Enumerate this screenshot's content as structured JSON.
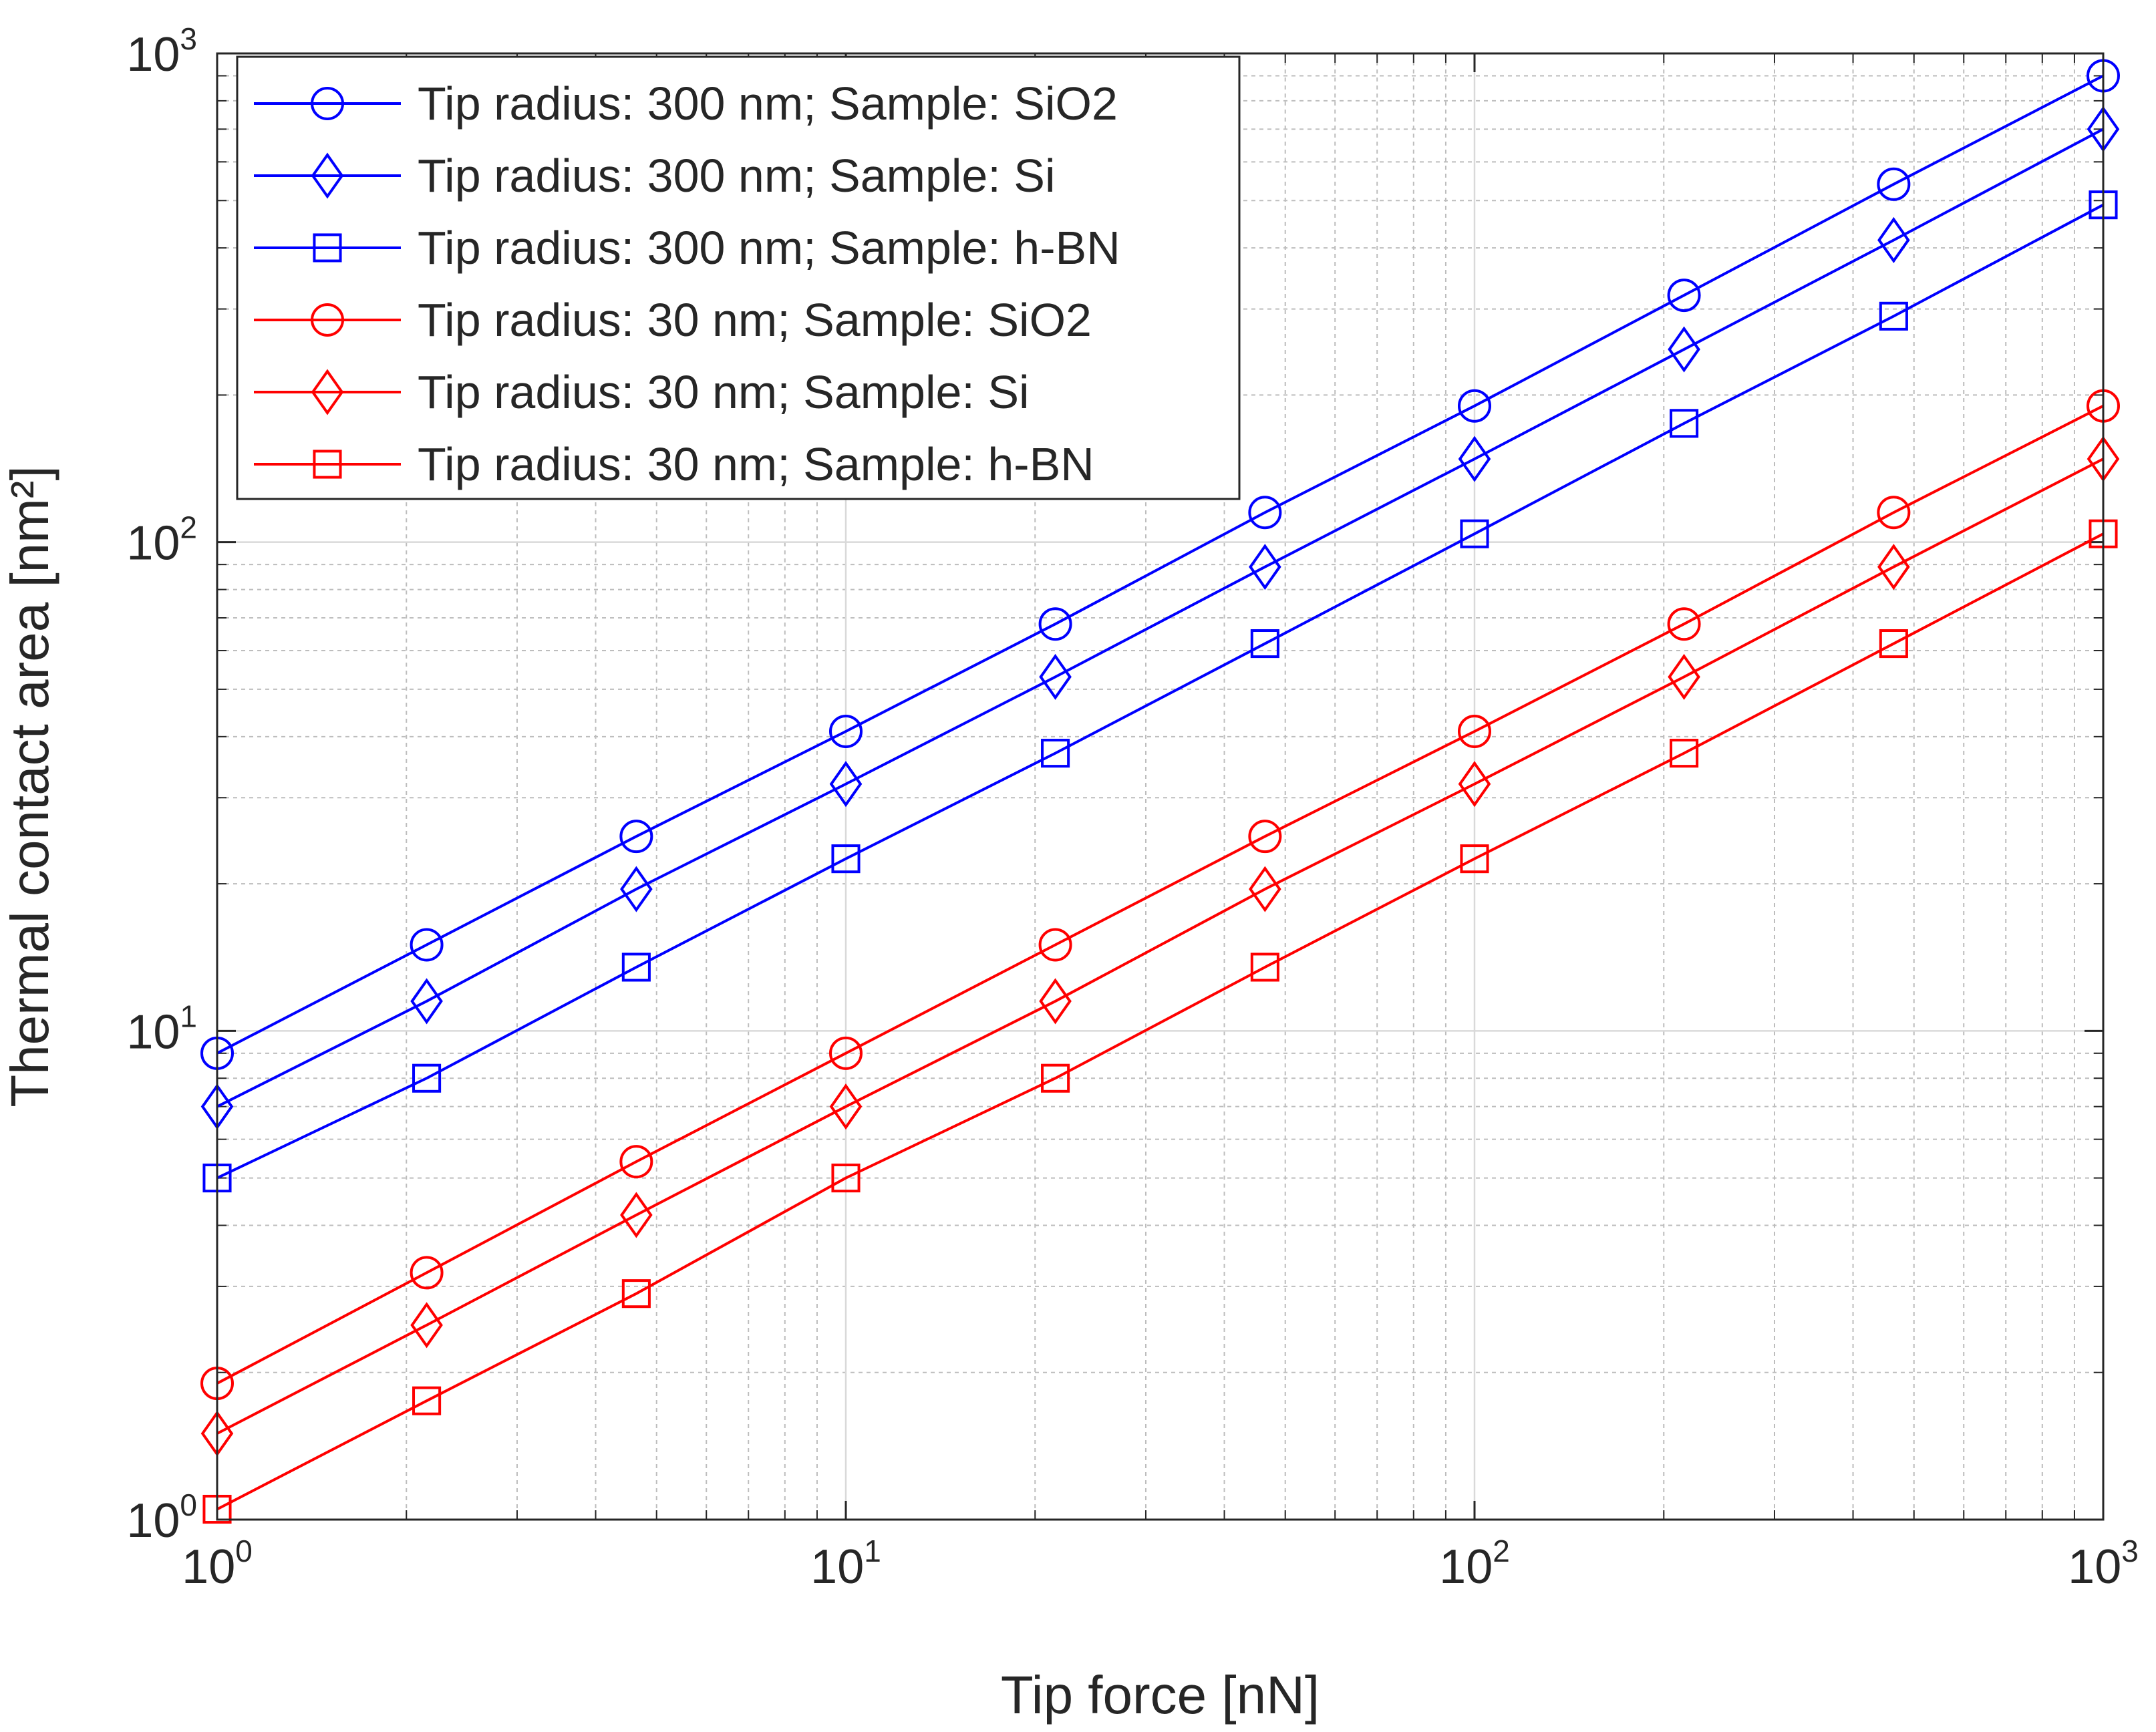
{
  "chart_data": {
    "type": "line",
    "xscale": "log",
    "yscale": "log",
    "xlabel": "Tip force [nN]",
    "ylabel": "Thermal contact area [nm²]",
    "xlim": [
      1,
      1000
    ],
    "ylim": [
      1,
      1000
    ],
    "x_ticks": [
      {
        "base": "10",
        "exp": "0",
        "value": 1
      },
      {
        "base": "10",
        "exp": "1",
        "value": 10
      },
      {
        "base": "10",
        "exp": "2",
        "value": 100
      },
      {
        "base": "10",
        "exp": "3",
        "value": 1000
      }
    ],
    "y_ticks": [
      {
        "base": "10",
        "exp": "0",
        "value": 1
      },
      {
        "base": "10",
        "exp": "1",
        "value": 10
      },
      {
        "base": "10",
        "exp": "2",
        "value": 100
      },
      {
        "base": "10",
        "exp": "3",
        "value": 1000
      }
    ],
    "grid": true,
    "legend_position": "top-left",
    "x": [
      1,
      2.154,
      4.642,
      10,
      21.54,
      46.42,
      100,
      215.4,
      464.2,
      1000
    ],
    "series": [
      {
        "name": "Tip radius: 300 nm; Sample: SiO2",
        "color": "#0000ff",
        "marker": "circle",
        "values": [
          9.0,
          15.0,
          25.0,
          41.0,
          68.0,
          115.0,
          190.0,
          320.0,
          540.0,
          900.0
        ]
      },
      {
        "name": "Tip radius: 300 nm; Sample: Si",
        "color": "#0000ff",
        "marker": "diamond",
        "values": [
          7.0,
          11.5,
          19.5,
          32.0,
          53.0,
          89.0,
          148.0,
          248.0,
          415.0,
          700.0
        ]
      },
      {
        "name": "Tip radius: 300 nm; Sample: h-BN",
        "color": "#0000ff",
        "marker": "square",
        "values": [
          5.0,
          8.0,
          13.5,
          22.5,
          37.0,
          62.0,
          104.0,
          175.0,
          290.0,
          490.0
        ]
      },
      {
        "name": "Tip radius: 30 nm; Sample: SiO2",
        "color": "#ff0000",
        "marker": "circle",
        "values": [
          1.9,
          3.2,
          5.4,
          9.0,
          15.0,
          25.0,
          41.0,
          68.0,
          115.0,
          190.0
        ]
      },
      {
        "name": "Tip radius: 30 nm; Sample: Si",
        "color": "#ff0000",
        "marker": "diamond",
        "values": [
          1.5,
          2.5,
          4.2,
          7.0,
          11.5,
          19.5,
          32.0,
          53.0,
          89.0,
          148.0
        ]
      },
      {
        "name": "Tip radius: 30 nm; Sample: h-BN",
        "color": "#ff0000",
        "marker": "square",
        "values": [
          1.05,
          1.75,
          2.9,
          5.0,
          8.0,
          13.5,
          22.5,
          37.0,
          62.0,
          104.0
        ]
      }
    ]
  }
}
